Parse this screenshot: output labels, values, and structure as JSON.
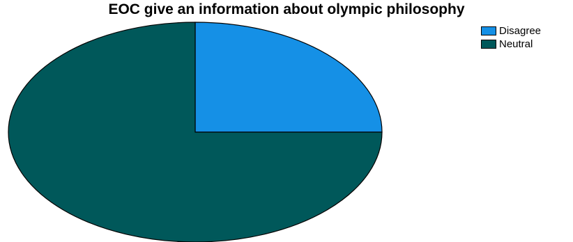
{
  "chart_data": {
    "type": "pie",
    "title": "EOC give an information about olympic philosophy",
    "slices": [
      {
        "label": "Disagree",
        "value": 25,
        "color": "#1590e6"
      },
      {
        "label": "Neutral",
        "value": 75,
        "color": "#00585a"
      }
    ],
    "start_angle_deg": 0,
    "direction": "clockwise",
    "legend_position": "top-right"
  }
}
